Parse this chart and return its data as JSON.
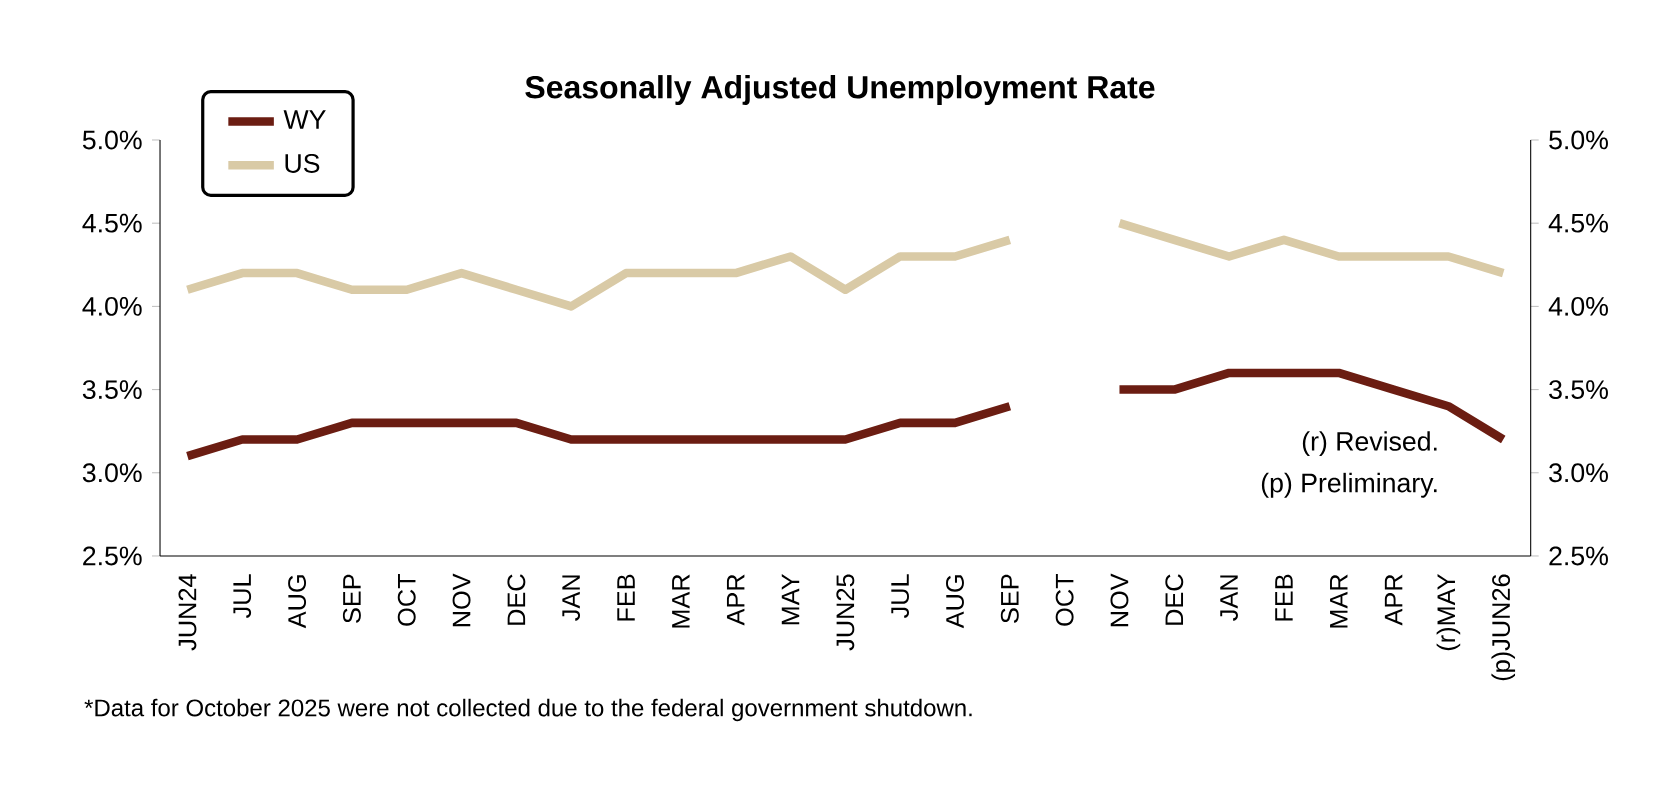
{
  "chart_data": {
    "type": "line",
    "title": "Seasonally Adjusted Unemployment Rate",
    "categories": [
      "JUN24",
      "JUL",
      "AUG",
      "SEP",
      "OCT",
      "NOV",
      "DEC",
      "JAN",
      "FEB",
      "MAR",
      "APR",
      "MAY",
      "JUN25",
      "JUL",
      "AUG",
      "SEP",
      "OCT",
      "NOV",
      "DEC",
      "JAN",
      "FEB",
      "MAR",
      "APR",
      "(r)MAY",
      "(p)JUN26"
    ],
    "series": [
      {
        "name": "WY",
        "color": "#6b1d12",
        "values": [
          3.1,
          3.2,
          3.2,
          3.3,
          3.3,
          3.3,
          3.3,
          3.2,
          3.2,
          3.2,
          3.2,
          3.2,
          3.2,
          3.3,
          3.3,
          3.4,
          null,
          3.5,
          3.5,
          3.6,
          3.6,
          3.6,
          3.5,
          3.4,
          3.2
        ]
      },
      {
        "name": "US",
        "color": "#d9caa6",
        "values": [
          4.1,
          4.2,
          4.2,
          4.1,
          4.1,
          4.2,
          4.1,
          4.0,
          4.2,
          4.2,
          4.2,
          4.3,
          4.1,
          4.3,
          4.3,
          4.4,
          null,
          4.5,
          4.4,
          4.3,
          4.4,
          4.3,
          4.3,
          4.3,
          4.2
        ]
      }
    ],
    "ylim": [
      2.5,
      5.0
    ],
    "yticks": [
      {
        "value": 2.5,
        "label": "2.5%"
      },
      {
        "value": 3.0,
        "label": "3.0%"
      },
      {
        "value": 3.5,
        "label": "3.5%"
      },
      {
        "value": 4.0,
        "label": "4.0%"
      },
      {
        "value": 4.5,
        "label": "4.5%"
      },
      {
        "value": 5.0,
        "label": "5.0%"
      }
    ],
    "y2lim": [
      2.5,
      5.0
    ],
    "y2ticks": [
      {
        "value": 2.5,
        "label": "2.5%"
      },
      {
        "value": 3.0,
        "label": "3.0%"
      },
      {
        "value": 3.5,
        "label": "3.5%"
      },
      {
        "value": 4.0,
        "label": "4.0%"
      },
      {
        "value": 4.5,
        "label": "4.5%"
      },
      {
        "value": 5.0,
        "label": "5.0%"
      }
    ],
    "legend": "top left",
    "grid": false,
    "marker": "none",
    "line_style": "solid",
    "annotations": [
      "(r) Revised.",
      "(p) Preliminary.",
      "*Data for October 2025 were not collected due to the federal government shutdown."
    ]
  }
}
